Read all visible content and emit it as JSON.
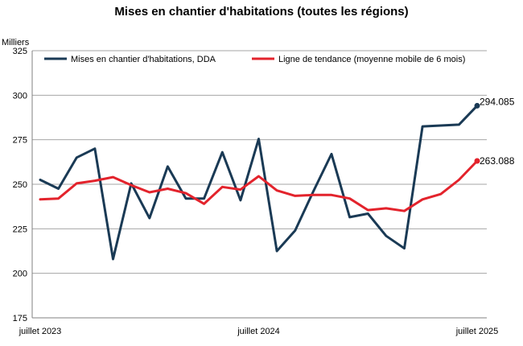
{
  "chart_data": {
    "type": "line",
    "title": "Mises en chantier d'habitations (toutes les régions)",
    "ylabel": "Milliers",
    "xlabel": "",
    "ylim": [
      175,
      325
    ],
    "yticks": [
      175,
      200,
      225,
      250,
      275,
      300,
      325
    ],
    "grid": "horizontal",
    "legend_position": "top",
    "x": [
      "2023-07",
      "2023-08",
      "2023-09",
      "2023-10",
      "2023-11",
      "2023-12",
      "2024-01",
      "2024-02",
      "2024-03",
      "2024-04",
      "2024-05",
      "2024-06",
      "2024-07",
      "2024-08",
      "2024-09",
      "2024-10",
      "2024-11",
      "2024-12",
      "2025-01",
      "2025-02",
      "2025-03",
      "2025-04",
      "2025-05",
      "2025-06",
      "2025-07"
    ],
    "x_tick_labels": [
      {
        "x": "2023-07",
        "label": "juillet 2023"
      },
      {
        "x": "2024-07",
        "label": "juillet 2024"
      },
      {
        "x": "2025-07",
        "label": "juillet 2025"
      }
    ],
    "series": [
      {
        "name": "Mises en chantier d'habitations, DDA",
        "color": "#1a3a55",
        "values": [
          252.5,
          247.5,
          265,
          270,
          208,
          250.5,
          231,
          260,
          242,
          242,
          268,
          241,
          275.5,
          212.5,
          224,
          246,
          267,
          231.5,
          233.5,
          221,
          214,
          282.5,
          283,
          283.5,
          294.085
        ],
        "end_label": "294.085"
      },
      {
        "name": "Ligne de tendance (moyenne mobile de 6 mois)",
        "color": "#e3232c",
        "values": [
          241.5,
          242,
          250.5,
          252,
          254,
          249.5,
          245.5,
          247.5,
          245,
          239,
          248.5,
          247,
          254.5,
          246.5,
          243.5,
          244,
          244,
          242,
          235.5,
          236.5,
          235,
          241.5,
          244.5,
          252.5,
          263.088
        ],
        "end_label": "263.088"
      }
    ]
  }
}
